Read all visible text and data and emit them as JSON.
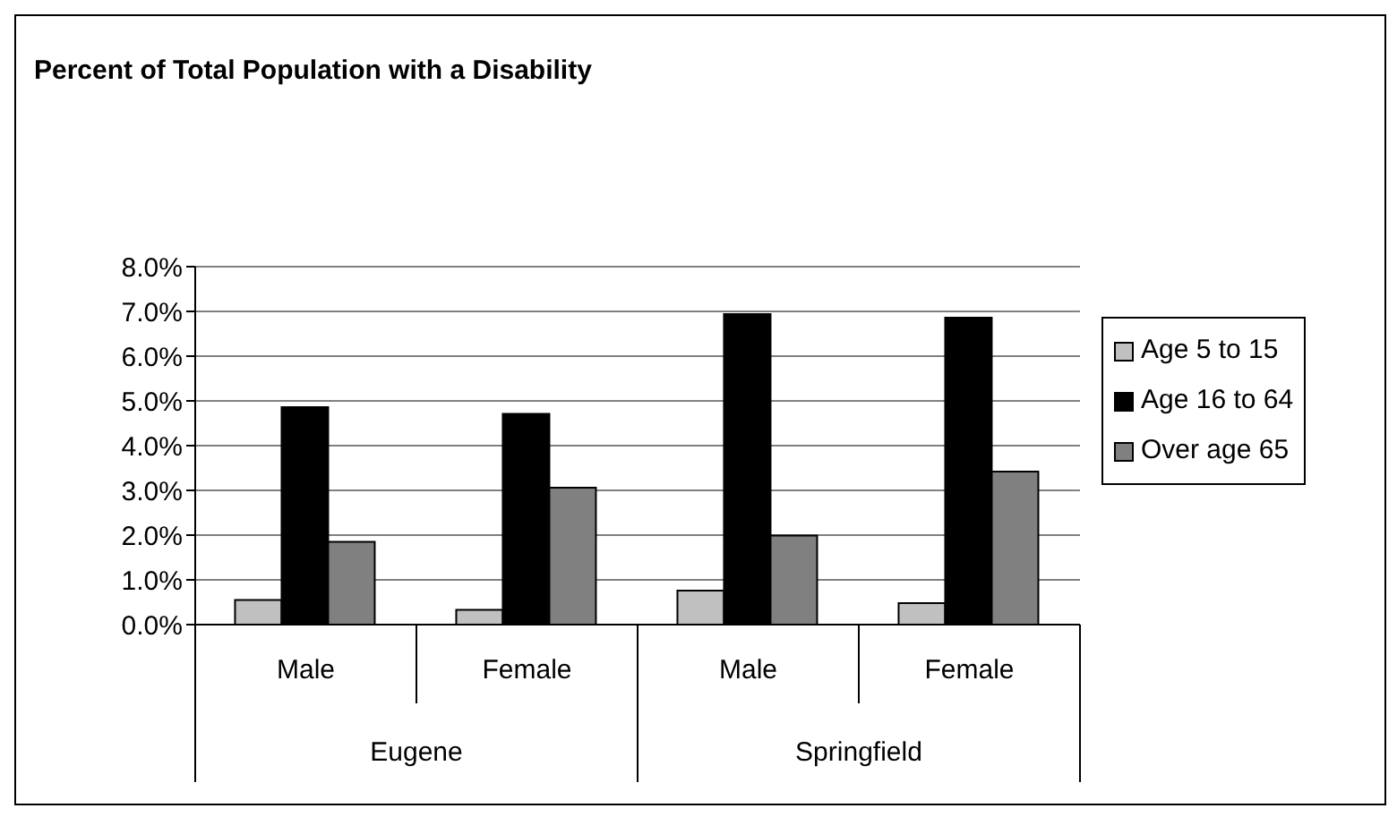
{
  "chart_data": {
    "type": "bar",
    "title": "Percent of Total Population with a Disability",
    "categories": [
      "Male",
      "Female",
      "Male",
      "Female"
    ],
    "annotations": [
      "Eugene",
      "Springfield"
    ],
    "series": [
      {
        "name": "Age 5 to 15",
        "color": "#c0c0c0",
        "values": [
          0.55,
          0.33,
          0.76,
          0.48
        ]
      },
      {
        "name": "Age 16 to 64",
        "color": "#000000",
        "values": [
          4.86,
          4.71,
          6.94,
          6.86
        ]
      },
      {
        "name": "Over age 65",
        "color": "#808080",
        "values": [
          1.85,
          3.06,
          1.99,
          3.42
        ]
      }
    ],
    "ylim": [
      0,
      8
    ],
    "yticks": [
      {
        "value": 0,
        "label": "0.0%"
      },
      {
        "value": 1,
        "label": "1.0%"
      },
      {
        "value": 2,
        "label": "2.0%"
      },
      {
        "value": 3,
        "label": "3.0%"
      },
      {
        "value": 4,
        "label": "4.0%"
      },
      {
        "value": 5,
        "label": "5.0%"
      },
      {
        "value": 6,
        "label": "6.0%"
      },
      {
        "value": 7,
        "label": "7.0%"
      },
      {
        "value": 8,
        "label": "8.0%"
      }
    ],
    "grid": "y",
    "legend": "right"
  }
}
